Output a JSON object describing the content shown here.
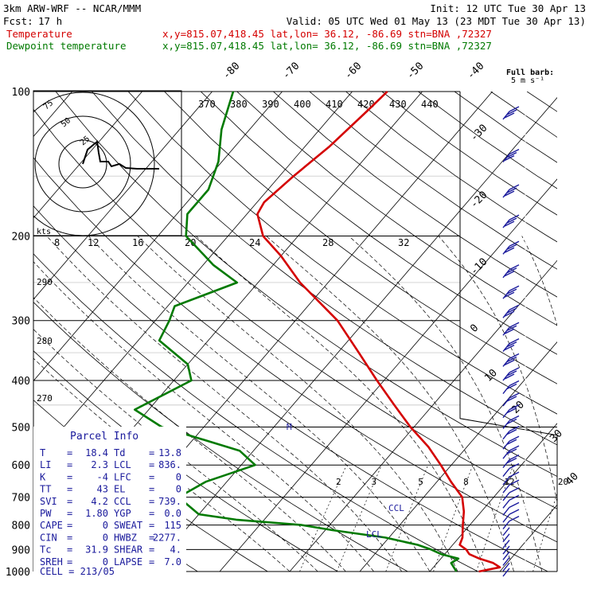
{
  "header": {
    "model": "3km ARW-WRF -- NCAR/MMM",
    "init": "Init: 12 UTC Tue 30 Apr 13",
    "fcst_label": "Fcst:",
    "fcst_value": "17 h",
    "valid": "Valid: 05 UTC Wed 01 May 13 (23 MDT Tue 30 Apr 13)",
    "temp_label": "Temperature",
    "dewp_label": "Dewpoint temperature",
    "location": "x,y=815.07,418.45   lat,lon= 36.12, -86.69   stn=BNA ,72327"
  },
  "barb_legend": {
    "line1": "Full barb:",
    "line2": "5 m s⁻¹"
  },
  "colors": {
    "temperature": "#d40000",
    "dewpoint": "#007a00",
    "axis": "#000000",
    "annotation": "#1a1a9c"
  },
  "parcel_info": {
    "title": "Parcel Info",
    "rows": [
      {
        "l1": "T",
        "v1": "18.4",
        "l2": "Td",
        "v2": "13.8"
      },
      {
        "l1": "LI",
        "v1": "2.3",
        "l2": "LCL",
        "v2": "836."
      },
      {
        "l1": "K",
        "v1": "-4",
        "l2": "LFC",
        "v2": "0"
      },
      {
        "l1": "TT",
        "v1": "43",
        "l2": "EL",
        "v2": "0"
      },
      {
        "l1": "SVI",
        "v1": "4.2",
        "l2": "CCL",
        "v2": "739."
      },
      {
        "l1": "PW",
        "v1": "1.80",
        "l2": "YGP",
        "v2": "0.0"
      },
      {
        "l1": "CAPE",
        "v1": "0",
        "l2": "SWEAT",
        "v2": "115"
      },
      {
        "l1": "CIN",
        "v1": "0",
        "l2": "HWBZ",
        "v2": "2277."
      },
      {
        "l1": "Tc",
        "v1": "31.9",
        "l2": "SHEAR",
        "v2": "4."
      },
      {
        "l1": "SREH",
        "v1": "0",
        "l2": "LAPSE",
        "v2": "7.0"
      }
    ],
    "cell": "CELL = 213/05"
  },
  "hodograph": {
    "unit": "kts",
    "rings": [
      "25",
      "50",
      "75"
    ]
  },
  "annotations": {
    "ccl": "CCL",
    "lcl": "LCL",
    "m": "M"
  },
  "chart_data": {
    "type": "line",
    "chart_kind": "skew-T log-P sounding",
    "y_axis": "pressure (hPa), log scale",
    "pressure_ticks": [
      100,
      200,
      300,
      400,
      500,
      600,
      700,
      800,
      900,
      1000
    ],
    "pressure_tick_labels": [
      "100",
      "200",
      "300",
      "400",
      "500",
      "600",
      "700",
      "800",
      "900",
      "1000"
    ],
    "isotherm_labels": [
      "-80",
      "-70",
      "-60",
      "-50",
      "-40",
      "-30",
      "-20",
      "-10",
      "0",
      "10",
      "20",
      "30",
      "40"
    ],
    "theta_labels": [
      "370",
      "380",
      "390",
      "400",
      "410",
      "420",
      "430",
      "440"
    ],
    "theta_left_labels": [
      "290",
      "280",
      "270"
    ],
    "mixing_ratio_labels": [
      "2",
      "3",
      "5",
      "8",
      "12",
      "20"
    ],
    "thetae_labels": [
      "8",
      "12",
      "16",
      "20",
      "24",
      "28",
      "32"
    ],
    "series": [
      {
        "name": "Temperature",
        "color": "#d40000",
        "points": [
          [
            1000,
            17.0
          ],
          [
            980,
            19.5
          ],
          [
            960,
            18.0
          ],
          [
            940,
            15.5
          ],
          [
            920,
            13.5
          ],
          [
            900,
            12.5
          ],
          [
            880,
            11.0
          ],
          [
            850,
            10.5
          ],
          [
            800,
            9.0
          ],
          [
            750,
            7.5
          ],
          [
            700,
            5.5
          ],
          [
            650,
            2.0
          ],
          [
            600,
            -1.5
          ],
          [
            550,
            -5.5
          ],
          [
            500,
            -10.5
          ],
          [
            450,
            -15.5
          ],
          [
            400,
            -21.0
          ],
          [
            350,
            -27.0
          ],
          [
            300,
            -34.0
          ],
          [
            250,
            -44.0
          ],
          [
            220,
            -50.0
          ],
          [
            200,
            -55.0
          ],
          [
            180,
            -58.5
          ],
          [
            170,
            -59.0
          ],
          [
            150,
            -58.0
          ],
          [
            130,
            -56.5
          ],
          [
            110,
            -55.5
          ],
          [
            100,
            -55.0
          ]
        ]
      },
      {
        "name": "Dewpoint temperature",
        "color": "#007a00",
        "points": [
          [
            1000,
            13.8
          ],
          [
            960,
            12.0
          ],
          [
            940,
            12.5
          ],
          [
            920,
            9.5
          ],
          [
            900,
            7.5
          ],
          [
            880,
            5.0
          ],
          [
            850,
            -0.5
          ],
          [
            820,
            -9.0
          ],
          [
            800,
            -14.0
          ],
          [
            780,
            -24.0
          ],
          [
            760,
            -30.0
          ],
          [
            700,
            -35.0
          ],
          [
            650,
            -33.0
          ],
          [
            600,
            -28.0
          ],
          [
            560,
            -32.0
          ],
          [
            500,
            -46.0
          ],
          [
            460,
            -52.0
          ],
          [
            400,
            -47.5
          ],
          [
            370,
            -50.0
          ],
          [
            330,
            -57.0
          ],
          [
            300,
            -58.0
          ],
          [
            280,
            -59.0
          ],
          [
            250,
            -53.0
          ],
          [
            230,
            -58.5
          ],
          [
            200,
            -66.0
          ],
          [
            180,
            -68.5
          ],
          [
            160,
            -68.5
          ],
          [
            140,
            -70.5
          ],
          [
            120,
            -74.0
          ],
          [
            100,
            -77.0
          ]
        ]
      }
    ]
  }
}
